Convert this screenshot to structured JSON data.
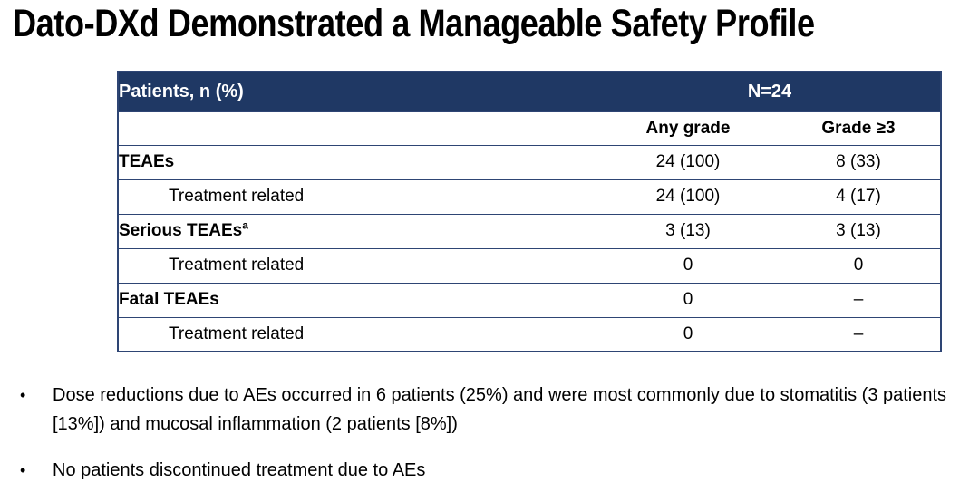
{
  "title": "Dato-DXd Demonstrated a Manageable Safety Profile",
  "bullet_char": "•",
  "table": {
    "header": {
      "label": "Patients, n (%)",
      "n_label": "N=24"
    },
    "subheader": {
      "any_grade": "Any grade",
      "grade_ge3": "Grade ≥3"
    },
    "rows": [
      {
        "label": "TEAEs",
        "sup": "",
        "bold": true,
        "indent": false,
        "any_grade": "24 (100)",
        "grade_ge3": "8 (33)"
      },
      {
        "label": "Treatment related",
        "sup": "",
        "bold": false,
        "indent": true,
        "any_grade": "24 (100)",
        "grade_ge3": "4 (17)"
      },
      {
        "label": "Serious TEAEs",
        "sup": "a",
        "bold": true,
        "indent": false,
        "any_grade": "3 (13)",
        "grade_ge3": "3 (13)"
      },
      {
        "label": "Treatment related",
        "sup": "",
        "bold": false,
        "indent": true,
        "any_grade": "0",
        "grade_ge3": "0"
      },
      {
        "label": "Fatal TEAEs",
        "sup": "",
        "bold": true,
        "indent": false,
        "any_grade": "0",
        "grade_ge3": "–"
      },
      {
        "label": "Treatment related",
        "sup": "",
        "bold": false,
        "indent": true,
        "any_grade": "0",
        "grade_ge3": "–"
      }
    ]
  },
  "bullets": [
    "Dose reductions due to AEs occurred in 6 patients (25%) and were most commonly due to stomatitis (3 patients [13%]) and mucosal inflammation (2 patients [8%])",
    "No patients discontinued treatment due to AEs"
  ],
  "colors": {
    "header_bg": "#1f3864",
    "border": "#2e4574",
    "header_text": "#ffffff",
    "text": "#000000"
  }
}
